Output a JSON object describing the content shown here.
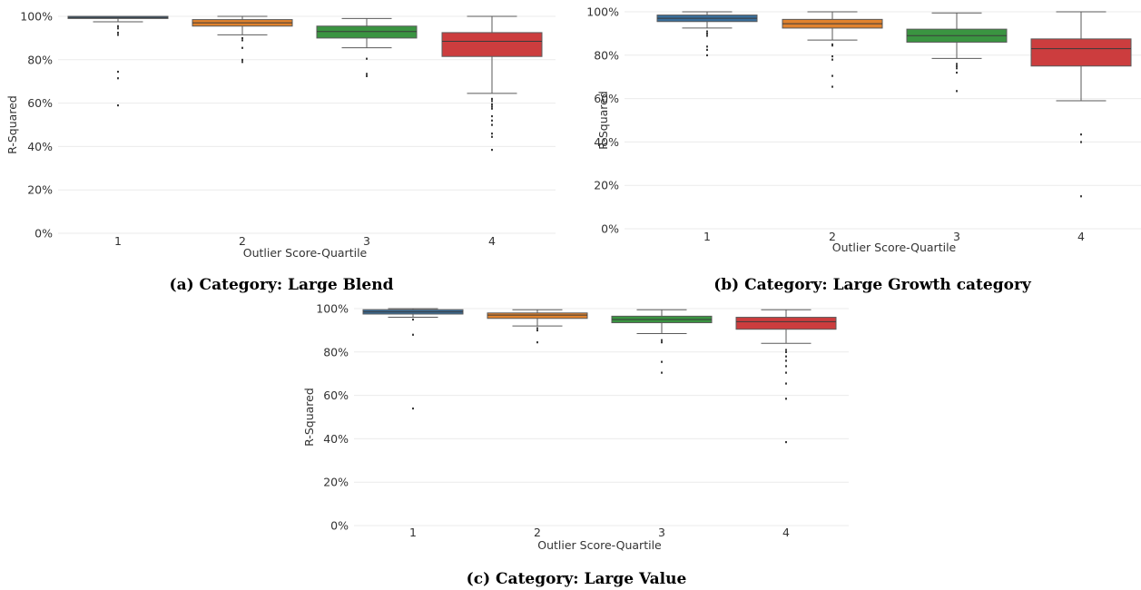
{
  "colors": {
    "q1": "#3a6e9a",
    "q2": "#e0822d",
    "q3": "#3a9441",
    "q4": "#cc3d3e",
    "grid": "#ebebeb",
    "whisker": "#5a5a5a",
    "median": "#3a3a3a",
    "outlier": "#3a3a3a"
  },
  "chart_data": [
    {
      "type": "box",
      "caption": "(a) Category: Large Blend",
      "xlabel": "Outlier Score-Quartile",
      "ylabel": "R-Squared",
      "ylim": [
        0,
        100
      ],
      "yticks": [
        "0%",
        "20%",
        "40%",
        "60%",
        "80%",
        "100%"
      ],
      "grid": true,
      "categories": [
        "1",
        "2",
        "3",
        "4"
      ],
      "boxes": [
        {
          "category": "1",
          "whisker_low": 97.5,
          "q1": 99.0,
          "median": 99.5,
          "q3": 100.0,
          "whisker_high": 100.0,
          "outliers": [
            95.5,
            94.5,
            92.5,
            91.5,
            74.5,
            71.5,
            59.0
          ]
        },
        {
          "category": "2",
          "whisker_low": 91.5,
          "q1": 95.5,
          "median": 97.0,
          "q3": 98.5,
          "whisker_high": 100.0,
          "outliers": [
            90.0,
            89.0,
            85.5,
            80.0,
            79.0
          ]
        },
        {
          "category": "3",
          "whisker_low": 85.5,
          "q1": 90.0,
          "median": 93.0,
          "q3": 95.5,
          "whisker_high": 99.0,
          "outliers": [
            80.5,
            73.5,
            72.5
          ]
        },
        {
          "category": "4",
          "whisker_low": 64.5,
          "q1": 81.5,
          "median": 88.5,
          "q3": 92.5,
          "whisker_high": 100.0,
          "outliers": [
            62.0,
            61.0,
            59.5,
            58.5,
            57.5,
            54.0,
            52.0,
            50.0,
            46.0,
            44.5,
            38.5
          ]
        }
      ]
    },
    {
      "type": "box",
      "caption": "(b) Category: Large Growth category",
      "xlabel": "Outlier Score-Quartile",
      "ylabel": "R-Squared",
      "ylim": [
        0,
        100
      ],
      "yticks": [
        "0%",
        "20%",
        "40%",
        "60%",
        "80%",
        "100%"
      ],
      "grid": true,
      "categories": [
        "1",
        "2",
        "3",
        "4"
      ],
      "boxes": [
        {
          "category": "1",
          "whisker_low": 92.5,
          "q1": 95.5,
          "median": 97.0,
          "q3": 98.5,
          "whisker_high": 100.0,
          "outliers": [
            91.0,
            90.0,
            89.0,
            84.0,
            82.5,
            80.0
          ]
        },
        {
          "category": "2",
          "whisker_low": 87.0,
          "q1": 92.5,
          "median": 94.5,
          "q3": 96.5,
          "whisker_high": 100.0,
          "outliers": [
            85.0,
            84.5,
            79.5,
            78.0,
            70.5,
            65.5
          ]
        },
        {
          "category": "3",
          "whisker_low": 78.5,
          "q1": 86.0,
          "median": 89.0,
          "q3": 92.0,
          "whisker_high": 99.5,
          "outliers": [
            76.0,
            75.0,
            74.0,
            72.0,
            63.5
          ]
        },
        {
          "category": "4",
          "whisker_low": 59.0,
          "q1": 75.0,
          "median": 83.0,
          "q3": 87.5,
          "whisker_high": 100.0,
          "outliers": [
            43.5,
            40.0,
            15.0
          ]
        }
      ]
    },
    {
      "type": "box",
      "caption": "(c) Category: Large Value",
      "xlabel": "Outlier Score-Quartile",
      "ylabel": "R-Squared",
      "ylim": [
        0,
        100
      ],
      "yticks": [
        "0%",
        "20%",
        "40%",
        "60%",
        "80%",
        "100%"
      ],
      "grid": true,
      "categories": [
        "1",
        "2",
        "3",
        "4"
      ],
      "boxes": [
        {
          "category": "1",
          "whisker_low": 96.0,
          "q1": 97.5,
          "median": 98.5,
          "q3": 99.5,
          "whisker_high": 100.0,
          "outliers": [
            95.0,
            88.0,
            54.0
          ]
        },
        {
          "category": "2",
          "whisker_low": 92.0,
          "q1": 95.5,
          "median": 97.0,
          "q3": 98.0,
          "whisker_high": 99.5,
          "outliers": [
            91.0,
            90.0,
            84.5
          ]
        },
        {
          "category": "3",
          "whisker_low": 88.5,
          "q1": 93.5,
          "median": 95.0,
          "q3": 96.5,
          "whisker_high": 99.5,
          "outliers": [
            85.5,
            84.5,
            75.5,
            70.5
          ]
        },
        {
          "category": "4",
          "whisker_low": 84.0,
          "q1": 90.5,
          "median": 94.0,
          "q3": 96.0,
          "whisker_high": 99.5,
          "outliers": [
            81.0,
            80.0,
            78.0,
            76.0,
            73.5,
            70.5,
            65.5,
            58.5,
            38.5
          ]
        }
      ]
    }
  ]
}
